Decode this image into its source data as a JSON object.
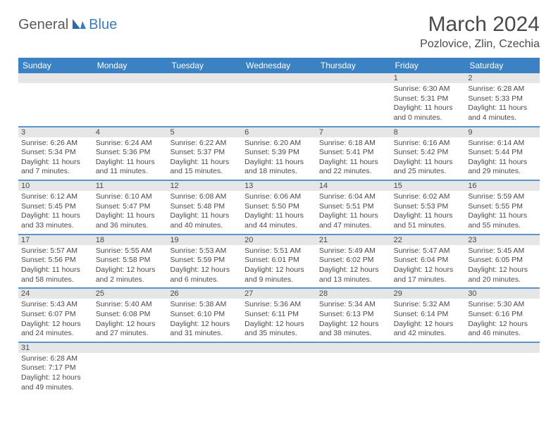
{
  "logo": {
    "part1": "General",
    "part2": "Blue"
  },
  "title": "March 2024",
  "location": "Pozlovice, Zlin, Czechia",
  "colors": {
    "header_bg": "#3b82c4",
    "header_text": "#ffffff",
    "daynum_bg": "#e6e6e6",
    "text": "#4a4a4a",
    "logo_accent": "#3b7bbf",
    "separator": "#3b82c4",
    "background": "#ffffff"
  },
  "typography": {
    "title_fontsize": 30,
    "location_fontsize": 16,
    "dayhead_fontsize": 12,
    "cell_fontsize": 10.5,
    "logo_fontsize": 20
  },
  "day_names": [
    "Sunday",
    "Monday",
    "Tuesday",
    "Wednesday",
    "Thursday",
    "Friday",
    "Saturday"
  ],
  "weeks": [
    [
      null,
      null,
      null,
      null,
      null,
      {
        "n": "1",
        "sunrise": "Sunrise: 6:30 AM",
        "sunset": "Sunset: 5:31 PM",
        "day1": "Daylight: 11 hours",
        "day2": "and 0 minutes."
      },
      {
        "n": "2",
        "sunrise": "Sunrise: 6:28 AM",
        "sunset": "Sunset: 5:33 PM",
        "day1": "Daylight: 11 hours",
        "day2": "and 4 minutes."
      }
    ],
    [
      {
        "n": "3",
        "sunrise": "Sunrise: 6:26 AM",
        "sunset": "Sunset: 5:34 PM",
        "day1": "Daylight: 11 hours",
        "day2": "and 7 minutes."
      },
      {
        "n": "4",
        "sunrise": "Sunrise: 6:24 AM",
        "sunset": "Sunset: 5:36 PM",
        "day1": "Daylight: 11 hours",
        "day2": "and 11 minutes."
      },
      {
        "n": "5",
        "sunrise": "Sunrise: 6:22 AM",
        "sunset": "Sunset: 5:37 PM",
        "day1": "Daylight: 11 hours",
        "day2": "and 15 minutes."
      },
      {
        "n": "6",
        "sunrise": "Sunrise: 6:20 AM",
        "sunset": "Sunset: 5:39 PM",
        "day1": "Daylight: 11 hours",
        "day2": "and 18 minutes."
      },
      {
        "n": "7",
        "sunrise": "Sunrise: 6:18 AM",
        "sunset": "Sunset: 5:41 PM",
        "day1": "Daylight: 11 hours",
        "day2": "and 22 minutes."
      },
      {
        "n": "8",
        "sunrise": "Sunrise: 6:16 AM",
        "sunset": "Sunset: 5:42 PM",
        "day1": "Daylight: 11 hours",
        "day2": "and 25 minutes."
      },
      {
        "n": "9",
        "sunrise": "Sunrise: 6:14 AM",
        "sunset": "Sunset: 5:44 PM",
        "day1": "Daylight: 11 hours",
        "day2": "and 29 minutes."
      }
    ],
    [
      {
        "n": "10",
        "sunrise": "Sunrise: 6:12 AM",
        "sunset": "Sunset: 5:45 PM",
        "day1": "Daylight: 11 hours",
        "day2": "and 33 minutes."
      },
      {
        "n": "11",
        "sunrise": "Sunrise: 6:10 AM",
        "sunset": "Sunset: 5:47 PM",
        "day1": "Daylight: 11 hours",
        "day2": "and 36 minutes."
      },
      {
        "n": "12",
        "sunrise": "Sunrise: 6:08 AM",
        "sunset": "Sunset: 5:48 PM",
        "day1": "Daylight: 11 hours",
        "day2": "and 40 minutes."
      },
      {
        "n": "13",
        "sunrise": "Sunrise: 6:06 AM",
        "sunset": "Sunset: 5:50 PM",
        "day1": "Daylight: 11 hours",
        "day2": "and 44 minutes."
      },
      {
        "n": "14",
        "sunrise": "Sunrise: 6:04 AM",
        "sunset": "Sunset: 5:51 PM",
        "day1": "Daylight: 11 hours",
        "day2": "and 47 minutes."
      },
      {
        "n": "15",
        "sunrise": "Sunrise: 6:02 AM",
        "sunset": "Sunset: 5:53 PM",
        "day1": "Daylight: 11 hours",
        "day2": "and 51 minutes."
      },
      {
        "n": "16",
        "sunrise": "Sunrise: 5:59 AM",
        "sunset": "Sunset: 5:55 PM",
        "day1": "Daylight: 11 hours",
        "day2": "and 55 minutes."
      }
    ],
    [
      {
        "n": "17",
        "sunrise": "Sunrise: 5:57 AM",
        "sunset": "Sunset: 5:56 PM",
        "day1": "Daylight: 11 hours",
        "day2": "and 58 minutes."
      },
      {
        "n": "18",
        "sunrise": "Sunrise: 5:55 AM",
        "sunset": "Sunset: 5:58 PM",
        "day1": "Daylight: 12 hours",
        "day2": "and 2 minutes."
      },
      {
        "n": "19",
        "sunrise": "Sunrise: 5:53 AM",
        "sunset": "Sunset: 5:59 PM",
        "day1": "Daylight: 12 hours",
        "day2": "and 6 minutes."
      },
      {
        "n": "20",
        "sunrise": "Sunrise: 5:51 AM",
        "sunset": "Sunset: 6:01 PM",
        "day1": "Daylight: 12 hours",
        "day2": "and 9 minutes."
      },
      {
        "n": "21",
        "sunrise": "Sunrise: 5:49 AM",
        "sunset": "Sunset: 6:02 PM",
        "day1": "Daylight: 12 hours",
        "day2": "and 13 minutes."
      },
      {
        "n": "22",
        "sunrise": "Sunrise: 5:47 AM",
        "sunset": "Sunset: 6:04 PM",
        "day1": "Daylight: 12 hours",
        "day2": "and 17 minutes."
      },
      {
        "n": "23",
        "sunrise": "Sunrise: 5:45 AM",
        "sunset": "Sunset: 6:05 PM",
        "day1": "Daylight: 12 hours",
        "day2": "and 20 minutes."
      }
    ],
    [
      {
        "n": "24",
        "sunrise": "Sunrise: 5:43 AM",
        "sunset": "Sunset: 6:07 PM",
        "day1": "Daylight: 12 hours",
        "day2": "and 24 minutes."
      },
      {
        "n": "25",
        "sunrise": "Sunrise: 5:40 AM",
        "sunset": "Sunset: 6:08 PM",
        "day1": "Daylight: 12 hours",
        "day2": "and 27 minutes."
      },
      {
        "n": "26",
        "sunrise": "Sunrise: 5:38 AM",
        "sunset": "Sunset: 6:10 PM",
        "day1": "Daylight: 12 hours",
        "day2": "and 31 minutes."
      },
      {
        "n": "27",
        "sunrise": "Sunrise: 5:36 AM",
        "sunset": "Sunset: 6:11 PM",
        "day1": "Daylight: 12 hours",
        "day2": "and 35 minutes."
      },
      {
        "n": "28",
        "sunrise": "Sunrise: 5:34 AM",
        "sunset": "Sunset: 6:13 PM",
        "day1": "Daylight: 12 hours",
        "day2": "and 38 minutes."
      },
      {
        "n": "29",
        "sunrise": "Sunrise: 5:32 AM",
        "sunset": "Sunset: 6:14 PM",
        "day1": "Daylight: 12 hours",
        "day2": "and 42 minutes."
      },
      {
        "n": "30",
        "sunrise": "Sunrise: 5:30 AM",
        "sunset": "Sunset: 6:16 PM",
        "day1": "Daylight: 12 hours",
        "day2": "and 46 minutes."
      }
    ],
    [
      {
        "n": "31",
        "sunrise": "Sunrise: 6:28 AM",
        "sunset": "Sunset: 7:17 PM",
        "day1": "Daylight: 12 hours",
        "day2": "and 49 minutes."
      },
      null,
      null,
      null,
      null,
      null,
      null
    ]
  ]
}
